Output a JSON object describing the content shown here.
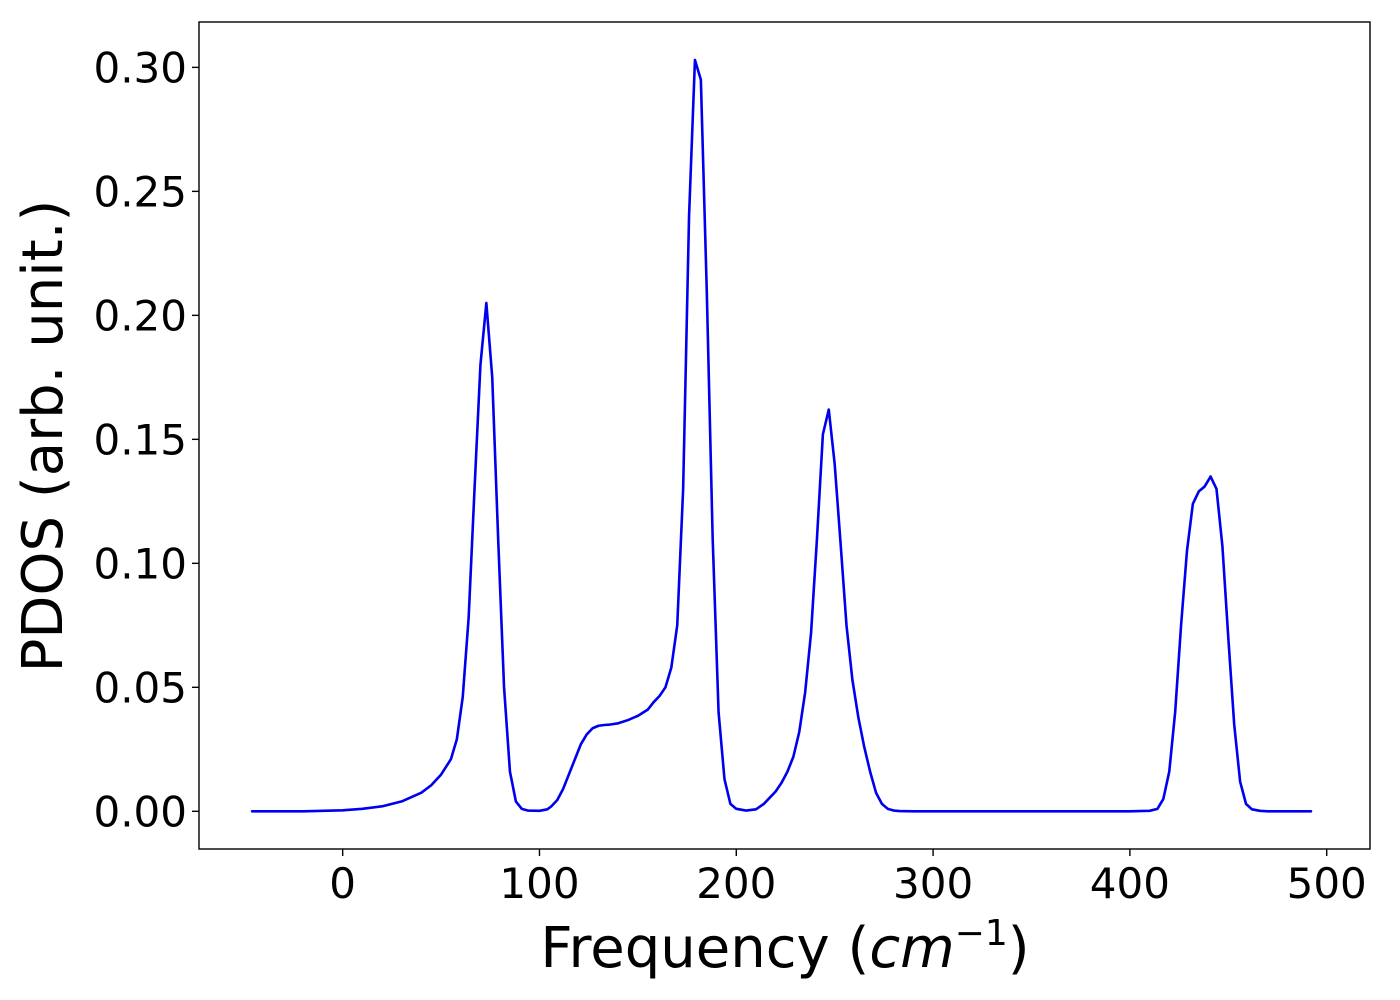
{
  "chart_data": {
    "type": "line",
    "title": "",
    "xlabel": {
      "main": "Frequency (",
      "unit_base": "cm",
      "unit_sup": "−1",
      "end": ")"
    },
    "ylabel": "PDOS (arb. unit.)",
    "xlim": [
      -73,
      522
    ],
    "ylim": [
      -0.0152,
      0.3183
    ],
    "xticks": [
      0,
      100,
      200,
      300,
      400,
      500
    ],
    "xtick_labels": [
      "0",
      "100",
      "200",
      "300",
      "400",
      "500"
    ],
    "yticks": [
      0.0,
      0.05,
      0.1,
      0.15,
      0.2,
      0.25,
      0.3
    ],
    "ytick_labels": [
      "0.00",
      "0.05",
      "0.10",
      "0.15",
      "0.20",
      "0.25",
      "0.30"
    ],
    "grid": false,
    "series": [
      {
        "color": "#0000ee",
        "x": [
          -46,
          -20,
          0,
          10,
          20,
          30,
          40,
          45,
          50,
          55,
          58,
          61,
          64,
          67,
          70,
          73,
          76,
          79,
          82,
          85,
          88,
          91,
          94,
          100,
          104,
          106,
          109,
          112,
          115,
          118,
          121,
          124,
          127,
          130,
          133,
          136,
          140,
          145,
          150,
          155,
          158,
          161,
          164,
          167,
          170,
          173,
          176,
          179,
          182,
          185,
          188,
          191,
          194,
          197,
          200,
          205,
          210,
          214,
          217,
          220,
          223,
          226,
          229,
          232,
          235,
          238,
          241,
          244,
          247,
          250,
          253,
          256,
          259,
          262,
          265,
          268,
          271,
          274,
          277,
          280,
          283,
          290,
          300,
          350,
          400,
          410,
          414,
          417,
          420,
          423,
          426,
          429,
          432,
          435,
          438,
          441,
          444,
          447,
          450,
          453,
          456,
          459,
          462,
          466,
          470,
          480,
          492
        ],
        "y": [
          0,
          0,
          0.0004,
          0.001,
          0.002,
          0.004,
          0.0075,
          0.0105,
          0.0148,
          0.021,
          0.029,
          0.046,
          0.078,
          0.13,
          0.18,
          0.205,
          0.175,
          0.11,
          0.05,
          0.016,
          0.004,
          0.001,
          0.0003,
          0.0002,
          0.0008,
          0.002,
          0.0045,
          0.009,
          0.015,
          0.021,
          0.027,
          0.031,
          0.0335,
          0.0345,
          0.0348,
          0.035,
          0.0355,
          0.0368,
          0.0385,
          0.041,
          0.044,
          0.0465,
          0.05,
          0.058,
          0.075,
          0.13,
          0.24,
          0.303,
          0.295,
          0.21,
          0.11,
          0.04,
          0.013,
          0.003,
          0.001,
          0.0003,
          0.0008,
          0.003,
          0.0055,
          0.008,
          0.0115,
          0.016,
          0.022,
          0.032,
          0.048,
          0.072,
          0.11,
          0.152,
          0.162,
          0.14,
          0.108,
          0.075,
          0.053,
          0.038,
          0.026,
          0.016,
          0.0075,
          0.003,
          0.001,
          0.0003,
          0.0001,
          0,
          0,
          0,
          0,
          0.0002,
          0.001,
          0.005,
          0.016,
          0.04,
          0.075,
          0.105,
          0.124,
          0.129,
          0.131,
          0.135,
          0.13,
          0.107,
          0.07,
          0.035,
          0.012,
          0.003,
          0.0008,
          0.0002,
          0,
          0,
          0
        ]
      }
    ]
  }
}
